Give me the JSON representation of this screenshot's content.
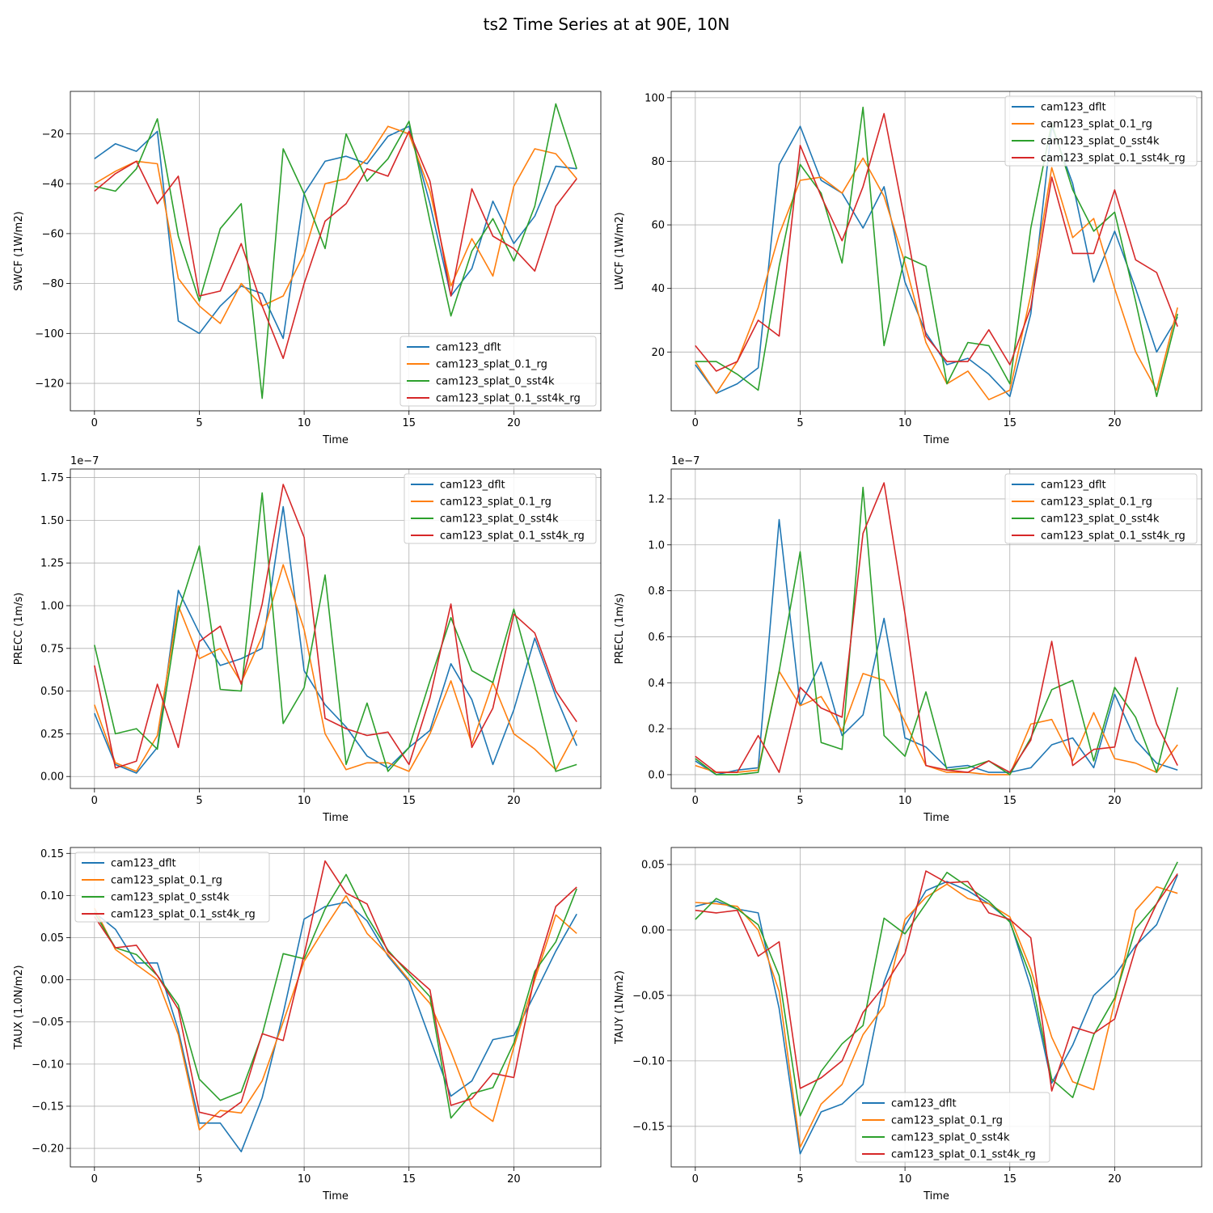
{
  "figure_title": "ts2 Time Series at at 90E, 10N",
  "series_names": [
    "cam123_dflt",
    "cam123_splat_0.1_rg",
    "cam123_splat_0_sst4k",
    "cam123_splat_0.1_sst4k_rg"
  ],
  "series_colors": [
    "#1f77b4",
    "#ff7f0e",
    "#2ca02c",
    "#d62728"
  ],
  "chart_data": [
    {
      "type": "line",
      "title": "",
      "xlabel": "Time",
      "ylabel": "SWCF (1W/m2)",
      "xlim": [
        -1.15,
        24.15
      ],
      "ylim": [
        -131,
        -3
      ],
      "xticks": [
        0,
        5,
        10,
        15,
        20
      ],
      "xtick_labels": [
        "0",
        "5",
        "10",
        "15",
        "20"
      ],
      "yticks": [
        -120,
        -100,
        -80,
        -60,
        -40,
        -20
      ],
      "ytick_labels": [
        "−120",
        "−100",
        "−80",
        "−60",
        "−40",
        "−20"
      ],
      "offset_label": "",
      "grid": true,
      "legend": "lower-right",
      "x": [
        0,
        1,
        2,
        3,
        4,
        5,
        6,
        7,
        8,
        9,
        10,
        11,
        12,
        13,
        14,
        15,
        16,
        17,
        18,
        19,
        20,
        21,
        22,
        23
      ],
      "series": [
        {
          "name": "cam123_dflt",
          "values": [
            -30,
            -24,
            -27,
            -19,
            -95,
            -100,
            -89,
            -81,
            -84,
            -102,
            -44,
            -31,
            -29,
            -32,
            -21,
            -17,
            -48,
            -85,
            -74,
            -47,
            -64,
            -53,
            -33,
            -34
          ]
        },
        {
          "name": "cam123_splat_0.1_rg",
          "values": [
            -40,
            -35,
            -31,
            -32,
            -78,
            -89,
            -96,
            -80,
            -89,
            -85,
            -68,
            -40,
            -38,
            -30,
            -17,
            -20,
            -43,
            -81,
            -62,
            -77,
            -41,
            -26,
            -28,
            -38
          ]
        },
        {
          "name": "cam123_splat_0_sst4k",
          "values": [
            -41,
            -43,
            -34,
            -14,
            -61,
            -87,
            -58,
            -48,
            -126,
            -26,
            -44,
            -66,
            -20,
            -39,
            -30,
            -15,
            -55,
            -93,
            -67,
            -54,
            -71,
            -49,
            -8,
            -34
          ]
        },
        {
          "name": "cam123_splat_0.1_sst4k_rg",
          "values": [
            -43,
            -36,
            -31,
            -48,
            -37,
            -85,
            -83,
            -64,
            -89,
            -110,
            -80,
            -55,
            -48,
            -34,
            -37,
            -19,
            -39,
            -85,
            -42,
            -61,
            -66,
            -75,
            -49,
            -38
          ]
        }
      ]
    },
    {
      "type": "line",
      "title": "",
      "xlabel": "Time",
      "ylabel": "LWCF (1W/m2)",
      "xlim": [
        -1.15,
        24.15
      ],
      "ylim": [
        1.5,
        102
      ],
      "xticks": [
        0,
        5,
        10,
        15,
        20
      ],
      "xtick_labels": [
        "0",
        "5",
        "10",
        "15",
        "20"
      ],
      "yticks": [
        20,
        40,
        60,
        80,
        100
      ],
      "ytick_labels": [
        "20",
        "40",
        "60",
        "80",
        "100"
      ],
      "offset_label": "",
      "grid": true,
      "legend": "upper-right",
      "x": [
        0,
        1,
        2,
        3,
        4,
        5,
        6,
        7,
        8,
        9,
        10,
        11,
        12,
        13,
        14,
        15,
        16,
        17,
        18,
        19,
        20,
        21,
        22,
        23
      ],
      "series": [
        {
          "name": "cam123_dflt",
          "values": [
            16,
            7,
            10,
            15,
            79,
            91,
            74,
            70,
            59,
            72,
            42,
            26,
            16,
            18,
            13,
            6,
            32,
            91,
            73,
            42,
            58,
            40,
            20,
            31
          ]
        },
        {
          "name": "cam123_splat_0.1_rg",
          "values": [
            17,
            7,
            17,
            34,
            57,
            74,
            75,
            70,
            81,
            69,
            48,
            23,
            10,
            14,
            5,
            8,
            38,
            78,
            56,
            62,
            40,
            20,
            8,
            34
          ]
        },
        {
          "name": "cam123_splat_0_sst4k",
          "values": [
            17,
            17,
            13,
            8,
            47,
            79,
            70,
            48,
            97,
            22,
            50,
            47,
            10,
            23,
            22,
            10,
            59,
            92,
            71,
            58,
            64,
            36,
            6,
            32
          ]
        },
        {
          "name": "cam123_splat_0.1_sst4k_rg",
          "values": [
            22,
            14,
            17,
            30,
            25,
            85,
            69,
            55,
            72,
            95,
            61,
            25,
            17,
            17,
            27,
            16,
            34,
            75,
            51,
            51,
            71,
            49,
            45,
            28
          ]
        }
      ]
    },
    {
      "type": "line",
      "title": "",
      "xlabel": "Time",
      "ylabel": "PRECC (1m/s)",
      "xlim": [
        -1.15,
        24.15
      ],
      "ylim": [
        -0.07,
        1.8
      ],
      "xticks": [
        0,
        5,
        10,
        15,
        20
      ],
      "xtick_labels": [
        "0",
        "5",
        "10",
        "15",
        "20"
      ],
      "yticks": [
        0,
        0.25,
        0.5,
        0.75,
        1.0,
        1.25,
        1.5,
        1.75
      ],
      "ytick_labels": [
        "0.00",
        "0.25",
        "0.50",
        "0.75",
        "1.00",
        "1.25",
        "1.50",
        "1.75"
      ],
      "offset_label": "1e−7",
      "grid": true,
      "legend": "upper-right",
      "x": [
        0,
        1,
        2,
        3,
        4,
        5,
        6,
        7,
        8,
        9,
        10,
        11,
        12,
        13,
        14,
        15,
        16,
        17,
        18,
        19,
        20,
        21,
        22,
        23
      ],
      "series": [
        {
          "name": "cam123_dflt",
          "values": [
            0.37,
            0.07,
            0.02,
            0.17,
            1.09,
            0.84,
            0.65,
            0.69,
            0.75,
            1.58,
            0.62,
            0.42,
            0.29,
            0.12,
            0.05,
            0.17,
            0.27,
            0.66,
            0.45,
            0.07,
            0.39,
            0.81,
            0.47,
            0.18
          ]
        },
        {
          "name": "cam123_splat_0.1_rg",
          "values": [
            0.42,
            0.08,
            0.03,
            0.24,
            1.0,
            0.69,
            0.75,
            0.55,
            0.82,
            1.24,
            0.86,
            0.25,
            0.04,
            0.08,
            0.08,
            0.03,
            0.25,
            0.56,
            0.19,
            0.55,
            0.25,
            0.16,
            0.04,
            0.27
          ]
        },
        {
          "name": "cam123_splat_0_sst4k",
          "values": [
            0.77,
            0.25,
            0.28,
            0.16,
            0.96,
            1.35,
            0.51,
            0.5,
            1.66,
            0.31,
            0.52,
            1.18,
            0.07,
            0.43,
            0.03,
            0.17,
            0.56,
            0.93,
            0.62,
            0.55,
            0.98,
            0.53,
            0.03,
            0.07
          ]
        },
        {
          "name": "cam123_splat_0.1_sst4k_rg",
          "values": [
            0.65,
            0.05,
            0.09,
            0.54,
            0.17,
            0.79,
            0.88,
            0.54,
            1.01,
            1.71,
            1.4,
            0.34,
            0.28,
            0.24,
            0.26,
            0.07,
            0.46,
            1.01,
            0.17,
            0.4,
            0.95,
            0.84,
            0.5,
            0.32
          ]
        }
      ]
    },
    {
      "type": "line",
      "title": "",
      "xlabel": "Time",
      "ylabel": "PRECL (1m/s)",
      "xlim": [
        -1.15,
        24.15
      ],
      "ylim": [
        -0.06,
        1.33
      ],
      "xticks": [
        0,
        5,
        10,
        15,
        20
      ],
      "xtick_labels": [
        "0",
        "5",
        "10",
        "15",
        "20"
      ],
      "yticks": [
        0,
        0.2,
        0.4,
        0.6,
        0.8,
        1.0,
        1.2
      ],
      "ytick_labels": [
        "0.0",
        "0.2",
        "0.4",
        "0.6",
        "0.8",
        "1.0",
        "1.2"
      ],
      "offset_label": "1e−7",
      "grid": true,
      "legend": "upper-right",
      "x": [
        0,
        1,
        2,
        3,
        4,
        5,
        6,
        7,
        8,
        9,
        10,
        11,
        12,
        13,
        14,
        15,
        16,
        17,
        18,
        19,
        20,
        21,
        22,
        23
      ],
      "series": [
        {
          "name": "cam123_dflt",
          "values": [
            0.06,
            0.0,
            0.02,
            0.03,
            1.11,
            0.3,
            0.49,
            0.17,
            0.26,
            0.68,
            0.16,
            0.12,
            0.03,
            0.04,
            0.01,
            0.01,
            0.03,
            0.13,
            0.16,
            0.03,
            0.35,
            0.15,
            0.05,
            0.02
          ]
        },
        {
          "name": "cam123_splat_0.1_rg",
          "values": [
            0.04,
            0.01,
            0.01,
            0.02,
            0.45,
            0.3,
            0.34,
            0.19,
            0.44,
            0.41,
            0.23,
            0.04,
            0.01,
            0.01,
            0.0,
            0.0,
            0.22,
            0.24,
            0.06,
            0.27,
            0.07,
            0.05,
            0.01,
            0.13
          ]
        },
        {
          "name": "cam123_splat_0_sst4k",
          "values": [
            0.07,
            0.0,
            0.0,
            0.01,
            0.45,
            0.97,
            0.14,
            0.11,
            1.25,
            0.17,
            0.08,
            0.36,
            0.02,
            0.03,
            0.06,
            0.0,
            0.16,
            0.37,
            0.41,
            0.06,
            0.38,
            0.25,
            0.01,
            0.38
          ]
        },
        {
          "name": "cam123_splat_0.1_sst4k_rg",
          "values": [
            0.08,
            0.01,
            0.01,
            0.17,
            0.01,
            0.38,
            0.29,
            0.25,
            1.05,
            1.27,
            0.7,
            0.04,
            0.02,
            0.01,
            0.06,
            0.01,
            0.15,
            0.58,
            0.04,
            0.11,
            0.12,
            0.51,
            0.22,
            0.04
          ]
        }
      ]
    },
    {
      "type": "line",
      "title": "",
      "xlabel": "Time",
      "ylabel": "TAUX (1.0N/m2)",
      "xlim": [
        -1.15,
        24.15
      ],
      "ylim": [
        -0.222,
        0.157
      ],
      "xticks": [
        0,
        5,
        10,
        15,
        20
      ],
      "xtick_labels": [
        "0",
        "5",
        "10",
        "15",
        "20"
      ],
      "yticks": [
        -0.2,
        -0.15,
        -0.1,
        -0.05,
        0,
        0.05,
        0.1,
        0.15
      ],
      "ytick_labels": [
        "−0.20",
        "−0.15",
        "−0.10",
        "−0.05",
        "0.00",
        "0.05",
        "0.10",
        "0.15"
      ],
      "offset_label": "",
      "grid": true,
      "legend": "upper-left",
      "x": [
        0,
        1,
        2,
        3,
        4,
        5,
        6,
        7,
        8,
        9,
        10,
        11,
        12,
        13,
        14,
        15,
        16,
        17,
        18,
        19,
        20,
        21,
        22,
        23
      ],
      "series": [
        {
          "name": "cam123_dflt",
          "values": [
            0.08,
            0.06,
            0.02,
            0.02,
            -0.06,
            -0.17,
            -0.17,
            -0.204,
            -0.14,
            -0.04,
            0.072,
            0.087,
            0.092,
            0.07,
            0.028,
            -0.002,
            -0.07,
            -0.138,
            -0.12,
            -0.071,
            -0.066,
            -0.017,
            0.034,
            0.078
          ]
        },
        {
          "name": "cam123_splat_0.1_rg",
          "values": [
            0.085,
            0.036,
            0.018,
            0.0,
            -0.065,
            -0.178,
            -0.155,
            -0.158,
            -0.12,
            -0.05,
            0.022,
            0.062,
            0.1,
            0.055,
            0.03,
            0.0,
            -0.028,
            -0.085,
            -0.15,
            -0.168,
            -0.08,
            0.0,
            0.077,
            0.055
          ]
        },
        {
          "name": "cam123_splat_0_sst4k",
          "values": [
            0.08,
            0.038,
            0.03,
            0.005,
            -0.03,
            -0.118,
            -0.143,
            -0.133,
            -0.065,
            0.031,
            0.025,
            0.084,
            0.125,
            0.075,
            0.035,
            0.007,
            -0.02,
            -0.164,
            -0.135,
            -0.128,
            -0.075,
            0.01,
            0.045,
            0.108
          ]
        },
        {
          "name": "cam123_splat_0.1_sst4k_rg",
          "values": [
            0.075,
            0.038,
            0.041,
            0.005,
            -0.035,
            -0.157,
            -0.163,
            -0.145,
            -0.064,
            -0.072,
            0.03,
            0.141,
            0.103,
            0.09,
            0.033,
            0.01,
            -0.012,
            -0.149,
            -0.141,
            -0.111,
            -0.116,
            0.005,
            0.087,
            0.11
          ]
        }
      ]
    },
    {
      "type": "line",
      "title": "",
      "xlabel": "Time",
      "ylabel": "TAUY (1N/m2)",
      "xlim": [
        -1.15,
        24.15
      ],
      "ylim": [
        -0.181,
        0.063
      ],
      "xticks": [
        0,
        5,
        10,
        15,
        20
      ],
      "xtick_labels": [
        "0",
        "5",
        "10",
        "15",
        "20"
      ],
      "yticks": [
        -0.15,
        -0.1,
        -0.05,
        0,
        0.05
      ],
      "ytick_labels": [
        "−0.15",
        "−0.10",
        "−0.05",
        "0.00",
        "0.05"
      ],
      "offset_label": "",
      "grid": true,
      "legend": "lower-center",
      "x": [
        0,
        1,
        2,
        3,
        4,
        5,
        6,
        7,
        8,
        9,
        10,
        11,
        12,
        13,
        14,
        15,
        16,
        17,
        18,
        19,
        20,
        21,
        22,
        23
      ],
      "series": [
        {
          "name": "cam123_dflt",
          "values": [
            0.018,
            0.022,
            0.016,
            0.013,
            -0.06,
            -0.171,
            -0.139,
            -0.133,
            -0.118,
            -0.04,
            0.003,
            0.03,
            0.037,
            0.03,
            0.02,
            0.007,
            -0.044,
            -0.117,
            -0.088,
            -0.05,
            -0.035,
            -0.012,
            0.004,
            0.042
          ]
        },
        {
          "name": "cam123_splat_0.1_rg",
          "values": [
            0.021,
            0.02,
            0.018,
            0.0,
            -0.047,
            -0.166,
            -0.133,
            -0.118,
            -0.08,
            -0.058,
            0.008,
            0.025,
            0.035,
            0.024,
            0.02,
            0.01,
            -0.03,
            -0.082,
            -0.116,
            -0.122,
            -0.055,
            0.015,
            0.033,
            0.028
          ]
        },
        {
          "name": "cam123_splat_0_sst4k",
          "values": [
            0.008,
            0.024,
            0.016,
            0.004,
            -0.035,
            -0.142,
            -0.108,
            -0.087,
            -0.073,
            0.009,
            -0.003,
            0.02,
            0.044,
            0.033,
            0.022,
            0.006,
            -0.036,
            -0.114,
            -0.128,
            -0.08,
            -0.052,
            0.001,
            0.02,
            0.052
          ]
        },
        {
          "name": "cam123_splat_0.1_sst4k_rg",
          "values": [
            0.015,
            0.013,
            0.015,
            -0.02,
            -0.009,
            -0.121,
            -0.113,
            -0.1,
            -0.063,
            -0.043,
            -0.018,
            0.045,
            0.036,
            0.037,
            0.013,
            0.008,
            -0.006,
            -0.123,
            -0.074,
            -0.079,
            -0.068,
            -0.014,
            0.02,
            0.043
          ]
        }
      ]
    }
  ]
}
